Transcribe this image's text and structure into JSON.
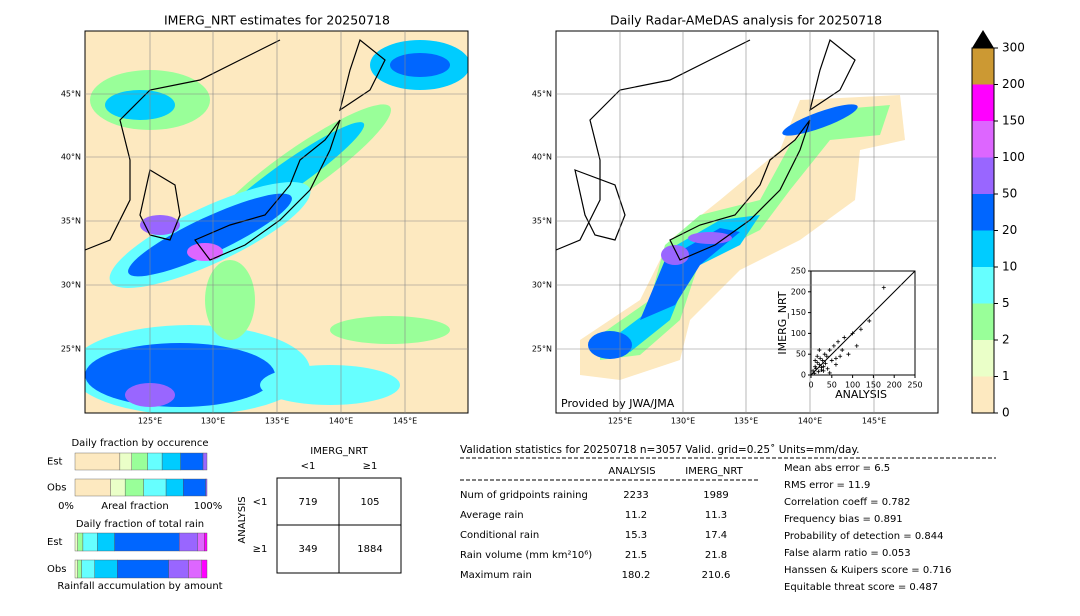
{
  "left_map": {
    "title": "IMERG_NRT estimates for 20250718",
    "lat_labels": [
      "45°N",
      "40°N",
      "35°N",
      "30°N",
      "25°N"
    ],
    "lon_labels": [
      "125°E",
      "130°E",
      "135°E",
      "140°E",
      "145°E"
    ]
  },
  "right_map": {
    "title": "Daily Radar-AMeDAS analysis for 20250718",
    "credit": "Provided by JWA/JMA",
    "lat_labels": [
      "45°N",
      "40°N",
      "35°N",
      "30°N",
      "25°N"
    ],
    "lon_labels": [
      "125°E",
      "130°E",
      "135°E",
      "140°E",
      "145°E"
    ]
  },
  "colorbar": {
    "levels": [
      0,
      1,
      2,
      5,
      10,
      20,
      50,
      100,
      150,
      200,
      300
    ],
    "colors": [
      "#fde9c0",
      "#eaffc8",
      "#99ff99",
      "#66ffff",
      "#00ccff",
      "#0066ff",
      "#9966ff",
      "#dd66ff",
      "#ff00ff",
      "#cc9933"
    ]
  },
  "scatter": {
    "xlabel": "ANALYSIS",
    "ylabel": "IMERG_NRT",
    "lim": [
      0,
      250
    ],
    "ticks": [
      0,
      50,
      100,
      150,
      200,
      250
    ],
    "x": [
      5,
      8,
      10,
      12,
      15,
      18,
      20,
      22,
      25,
      28,
      30,
      33,
      35,
      38,
      40,
      45,
      50,
      55,
      60,
      65,
      70,
      75,
      80,
      90,
      100,
      110,
      120,
      140,
      175,
      20,
      15,
      30,
      45,
      60,
      10,
      25
    ],
    "y": [
      10,
      4,
      20,
      15,
      30,
      8,
      25,
      40,
      12,
      35,
      20,
      50,
      28,
      45,
      15,
      60,
      35,
      70,
      25,
      80,
      45,
      60,
      90,
      50,
      100,
      70,
      110,
      130,
      210,
      60,
      45,
      10,
      5,
      40,
      35,
      18
    ]
  },
  "occurrence": {
    "title": "Daily fraction by occurence",
    "rows": [
      "Est",
      "Obs"
    ],
    "est": [
      34,
      9,
      12,
      11,
      14,
      17,
      3
    ],
    "obs": [
      27,
      11,
      14,
      17,
      13,
      17,
      1
    ],
    "left": "0%",
    "mid": "Areal fraction",
    "right": "100%"
  },
  "total_rain": {
    "title": "Daily fraction of total rain",
    "rows": [
      "Est",
      "Obs"
    ],
    "est": [
      2,
      4,
      11,
      13,
      49,
      14,
      5,
      2
    ],
    "obs": [
      2,
      3,
      10,
      17,
      39,
      15,
      10,
      4
    ],
    "caption": "Rainfall accumulation by amount"
  },
  "contingency": {
    "col_title": "IMERG_NRT",
    "row_title": "ANALYSIS",
    "col_labels": [
      "<1",
      "≥1"
    ],
    "row_labels": [
      "<1",
      "≥1"
    ],
    "cells": [
      [
        719,
        105
      ],
      [
        349,
        1884
      ]
    ]
  },
  "stats": {
    "title": "Validation statistics for 20250718  n=3057 Valid. grid=0.25˚ Units=mm/day.",
    "headers": [
      "ANALYSIS",
      "IMERG_NRT"
    ],
    "rows": [
      [
        "Num of gridpoints raining",
        2233,
        1989
      ],
      [
        "Average rain",
        11.2,
        11.3
      ],
      [
        "Conditional rain",
        15.3,
        17.4
      ],
      [
        "Rain volume (mm km²10⁶)",
        21.5,
        21.8
      ],
      [
        "Maximum rain",
        180.2,
        210.6
      ]
    ],
    "scores": [
      "Mean abs error =    6.5",
      "RMS error =   11.9",
      "Correlation coeff =  0.782",
      "Frequency bias =  0.891",
      "Probability of detection =  0.844",
      "False alarm ratio =  0.053",
      "Hanssen & Kuipers score =  0.716",
      "Equitable threat score =  0.487"
    ]
  }
}
